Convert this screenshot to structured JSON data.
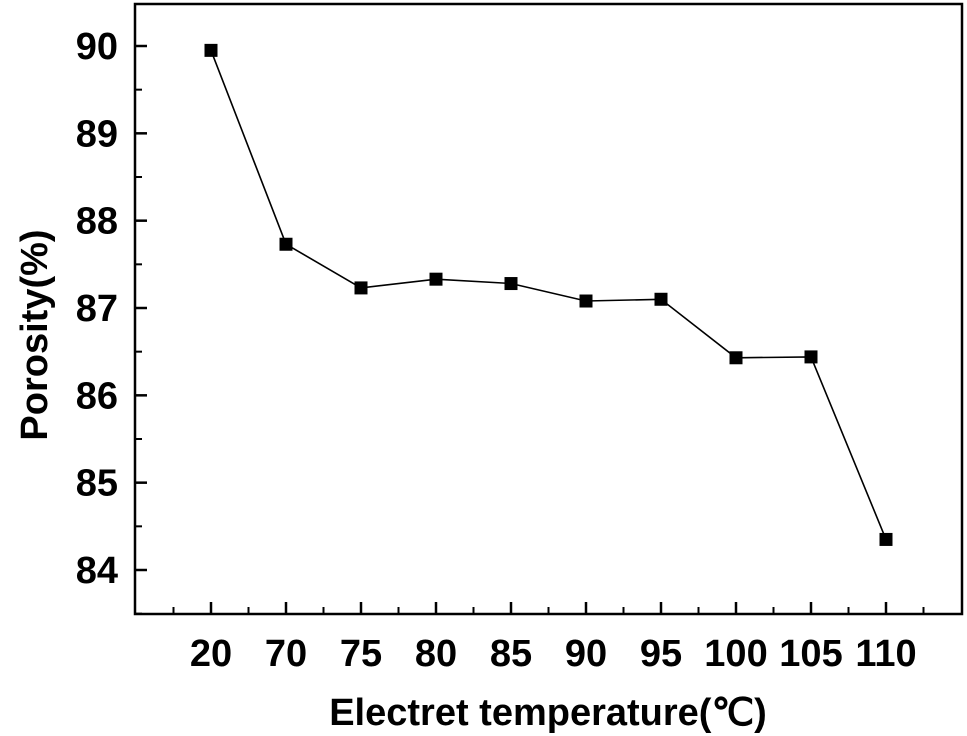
{
  "chart_data": {
    "type": "line",
    "title": "",
    "xlabel": "Electret temperature(℃)",
    "ylabel": "Porosity(%)",
    "categories": [
      "20",
      "70",
      "75",
      "80",
      "85",
      "90",
      "95",
      "100",
      "105",
      "110"
    ],
    "series": [
      {
        "values": [
          89.95,
          87.73,
          87.23,
          87.33,
          87.28,
          87.08,
          87.1,
          86.43,
          86.44,
          84.35
        ],
        "color": "#000000",
        "marker": "square"
      }
    ],
    "ylim": [
      83.5,
      90.5
    ],
    "yticks": [
      "84",
      "85",
      "86",
      "87",
      "88",
      "89",
      "90"
    ],
    "grid": false,
    "legend": "none"
  }
}
